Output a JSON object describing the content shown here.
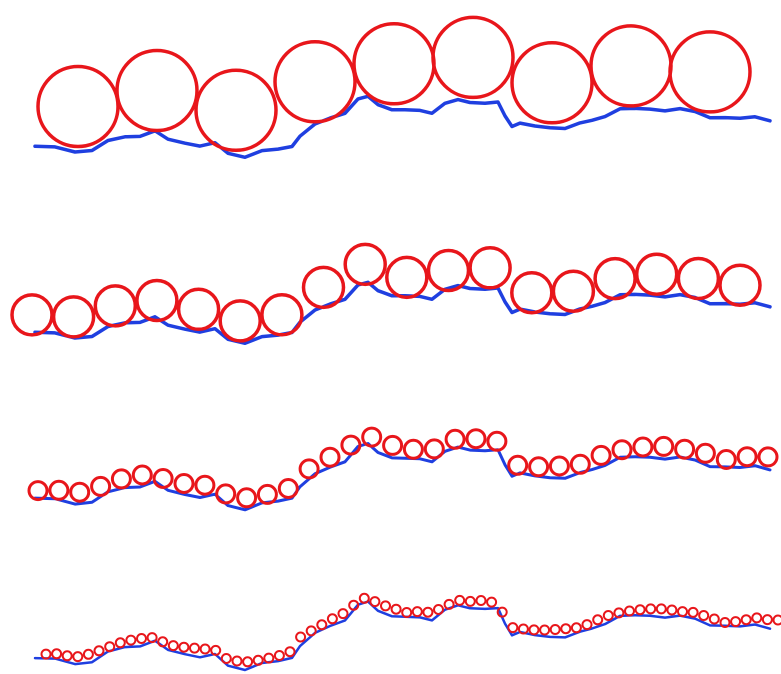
{
  "colors": {
    "background": "#ffffff",
    "coastline": "#1f3fe0",
    "circles": "#e8161b"
  },
  "panels": [
    {
      "id": "panel-1",
      "circle_count": 9
    },
    {
      "id": "panel-2",
      "circle_count": 18
    },
    {
      "id": "panel-3",
      "circle_count": 36
    },
    {
      "id": "panel-4",
      "circle_count": 70
    }
  ]
}
